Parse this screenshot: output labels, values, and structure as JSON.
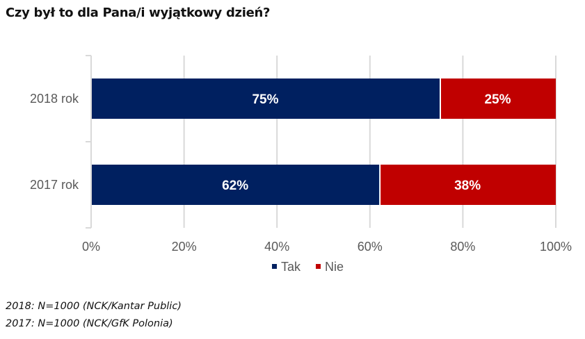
{
  "title": "Czy był to dla Pana/i wyjątkowy dzień?",
  "chart_data": {
    "type": "bar",
    "orientation": "horizontal",
    "stacked": true,
    "categories": [
      "2018 rok",
      "2017 rok"
    ],
    "series": [
      {
        "name": "Tak",
        "values": [
          75,
          62
        ],
        "labels": [
          "75%",
          "62%"
        ],
        "color": "#002060"
      },
      {
        "name": "Nie",
        "values": [
          25,
          38
        ],
        "labels": [
          "25%",
          "38%"
        ],
        "color": "#C00000"
      }
    ],
    "xlim": [
      0,
      100
    ],
    "xticks": [
      "0%",
      "20%",
      "40%",
      "60%",
      "80%",
      "100%"
    ],
    "grid": true,
    "legend": "bottom"
  },
  "notes": [
    "2018: N=1000 (NCK/Kantar Public)",
    "2017: N=1000 (NCK/GfK Polonia)"
  ]
}
